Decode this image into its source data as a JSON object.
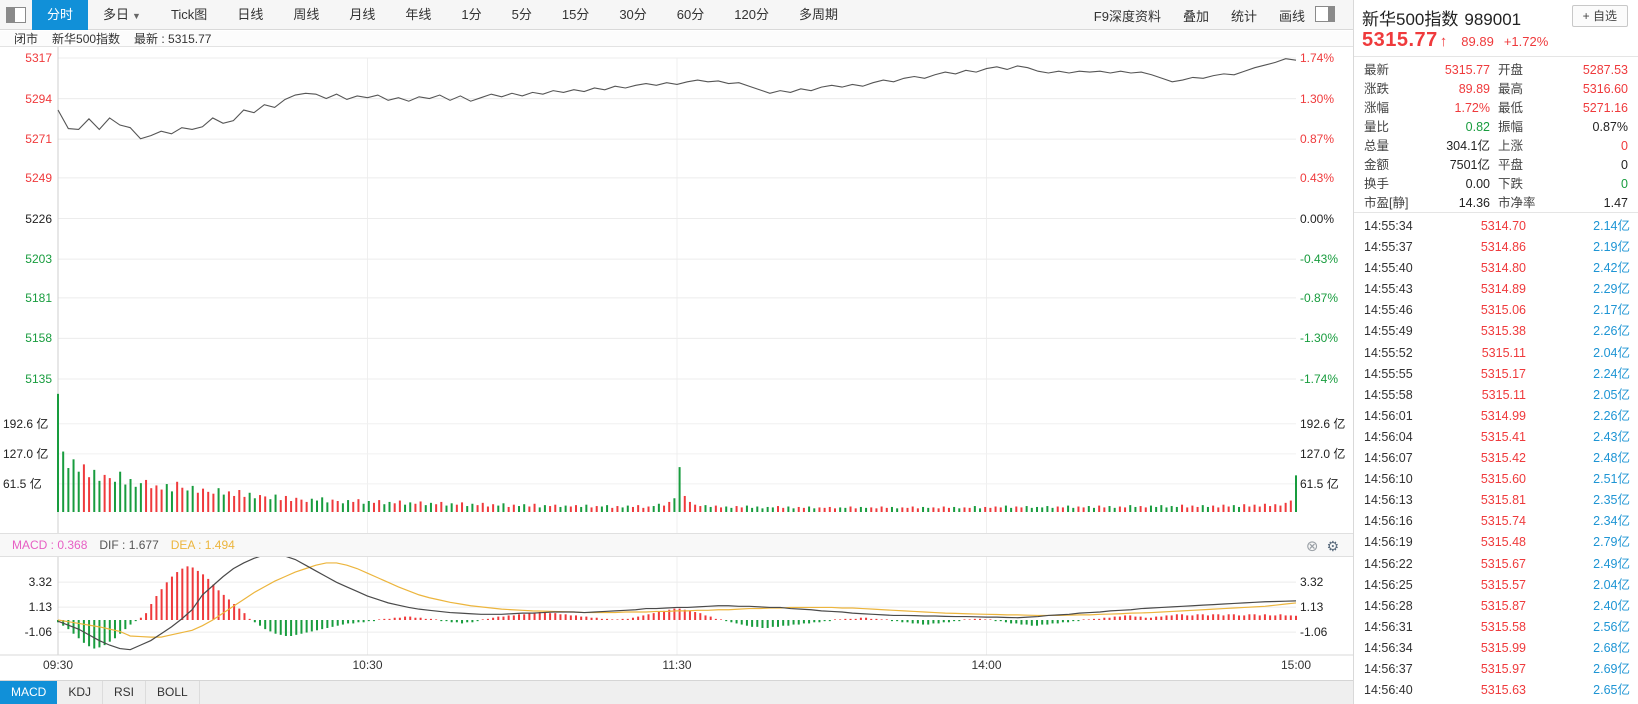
{
  "toolbar": {
    "tabs": [
      {
        "label": "分时",
        "active": true
      },
      {
        "label": "多日",
        "caret": true
      },
      {
        "label": "Tick图"
      },
      {
        "label": "日线"
      },
      {
        "label": "周线"
      },
      {
        "label": "月线"
      },
      {
        "label": "年线"
      },
      {
        "label": "1分"
      },
      {
        "label": "5分"
      },
      {
        "label": "15分"
      },
      {
        "label": "30分"
      },
      {
        "label": "60分"
      },
      {
        "label": "120分"
      },
      {
        "label": "多周期"
      }
    ],
    "right_items": [
      "F9深度资料",
      "叠加",
      "统计",
      "画线"
    ]
  },
  "status_bar": {
    "market_status": "闭市",
    "name": "新华500指数",
    "latest": "最新 : 5315.77"
  },
  "quote_panel": {
    "title": "新华500指数",
    "code": "989001",
    "add_watchlist_label": "+ 自选",
    "price": "5315.77",
    "arrow": "↑",
    "change": "89.89",
    "change_pct": "+1.72%",
    "stats": [
      {
        "l": "最新",
        "v": "5315.77",
        "c": "red",
        "l2": "开盘",
        "v2": "5287.53",
        "c2": "red"
      },
      {
        "l": "涨跌",
        "v": "89.89",
        "c": "red",
        "l2": "最高",
        "v2": "5316.60",
        "c2": "red"
      },
      {
        "l": "涨幅",
        "v": "1.72%",
        "c": "red",
        "l2": "最低",
        "v2": "5271.16",
        "c2": "red"
      },
      {
        "l": "量比",
        "v": "0.82",
        "c": "green",
        "l2": "振幅",
        "v2": "0.87%",
        "c2": "blk"
      },
      {
        "l": "总量",
        "v": "304.1亿",
        "c": "blk",
        "l2": "上涨",
        "v2": "0",
        "c2": "red"
      },
      {
        "l": "金额",
        "v": "7501亿",
        "c": "blk",
        "l2": "平盘",
        "v2": "0",
        "c2": "blk"
      },
      {
        "l": "换手",
        "v": "0.00",
        "c": "blk",
        "l2": "下跌",
        "v2": "0",
        "c2": "green"
      },
      {
        "l": "市盈[静]",
        "v": "14.36",
        "c": "blk",
        "l2": "市净率",
        "v2": "1.47",
        "c2": "blk"
      }
    ],
    "ticks": [
      {
        "time": "14:55:34",
        "price": "5314.70",
        "vol": "2.14亿"
      },
      {
        "time": "14:55:37",
        "price": "5314.86",
        "vol": "2.19亿"
      },
      {
        "time": "14:55:40",
        "price": "5314.80",
        "vol": "2.42亿"
      },
      {
        "time": "14:55:43",
        "price": "5314.89",
        "vol": "2.29亿"
      },
      {
        "time": "14:55:46",
        "price": "5315.06",
        "vol": "2.17亿"
      },
      {
        "time": "14:55:49",
        "price": "5315.38",
        "vol": "2.26亿"
      },
      {
        "time": "14:55:52",
        "price": "5315.11",
        "vol": "2.04亿"
      },
      {
        "time": "14:55:55",
        "price": "5315.17",
        "vol": "2.24亿"
      },
      {
        "time": "14:55:58",
        "price": "5315.11",
        "vol": "2.05亿"
      },
      {
        "time": "14:56:01",
        "price": "5314.99",
        "vol": "2.26亿"
      },
      {
        "time": "14:56:04",
        "price": "5315.41",
        "vol": "2.43亿"
      },
      {
        "time": "14:56:07",
        "price": "5315.42",
        "vol": "2.48亿"
      },
      {
        "time": "14:56:10",
        "price": "5315.60",
        "vol": "2.51亿"
      },
      {
        "time": "14:56:13",
        "price": "5315.81",
        "vol": "2.35亿"
      },
      {
        "time": "14:56:16",
        "price": "5315.74",
        "vol": "2.34亿"
      },
      {
        "time": "14:56:19",
        "price": "5315.48",
        "vol": "2.79亿"
      },
      {
        "time": "14:56:22",
        "price": "5315.67",
        "vol": "2.49亿"
      },
      {
        "time": "14:56:25",
        "price": "5315.57",
        "vol": "2.04亿"
      },
      {
        "time": "14:56:28",
        "price": "5315.87",
        "vol": "2.40亿"
      },
      {
        "time": "14:56:31",
        "price": "5315.58",
        "vol": "2.56亿"
      },
      {
        "time": "14:56:34",
        "price": "5315.99",
        "vol": "2.68亿"
      },
      {
        "time": "14:56:37",
        "price": "5315.97",
        "vol": "2.69亿"
      },
      {
        "time": "14:56:40",
        "price": "5315.63",
        "vol": "2.65亿"
      }
    ]
  },
  "chart": {
    "macd_header": {
      "macd_label": "MACD : 0.368",
      "dif_label": "DIF : 1.677",
      "dea_label": "DEA : 1.494"
    },
    "indicator_tabs": [
      "MACD",
      "KDJ",
      "RSI",
      "BOLL"
    ],
    "active_indicator": "MACD",
    "volume_unit": "亿"
  },
  "colors": {
    "up_red": "#ef3a3c",
    "down_green": "#189c3e",
    "volume_blue": "#1e95d4",
    "accent_blue": "#1190d8",
    "macd_pink": "#e75fc4",
    "dea_orange": "#ecb53d",
    "dif_gray": "#4a4a4a",
    "price_line": "#555555"
  },
  "chart_data": {
    "type": "line",
    "title": "新华500指数 分时走势",
    "prev_close": 5225.88,
    "price_gridlines": [
      5317,
      5294,
      5271,
      5249,
      5226,
      5203,
      5181,
      5158,
      5135
    ],
    "pct_gridlines": [
      "1.74%",
      "1.30%",
      "0.87%",
      "0.43%",
      "0.00%",
      "-0.43%",
      "-0.87%",
      "-1.30%",
      "-1.74%"
    ],
    "price_ylim": [
      5135,
      5317
    ],
    "x_ticks": [
      "09:30",
      "10:30",
      "11:30",
      "14:00",
      "15:00"
    ],
    "price": [
      5287.5,
      5277.0,
      5276.5,
      5282.5,
      5276.5,
      5283.0,
      5279.0,
      5277.5,
      5271.2,
      5273.0,
      5275.5,
      5274.0,
      5277.5,
      5276.5,
      5278.0,
      5283.0,
      5280.0,
      5281.5,
      5287.5,
      5286.0,
      5290.5,
      5289.0,
      5293.5,
      5296.0,
      5297.0,
      5296.5,
      5294.0,
      5296.5,
      5293.5,
      5295.5,
      5294.5,
      5296.0,
      5293.0,
      5294.5,
      5292.5,
      5295.0,
      5294.0,
      5296.0,
      5293.0,
      5295.5,
      5292.5,
      5294.5,
      5296.5,
      5295.0,
      5297.0,
      5295.5,
      5297.5,
      5296.5,
      5298.5,
      5297.5,
      5299.0,
      5298.0,
      5300.0,
      5299.0,
      5301.0,
      5300.0,
      5301.5,
      5302.5,
      5301.5,
      5303.0,
      5302.0,
      5303.5,
      5304.5,
      5303.5,
      5304.0,
      5302.5,
      5303.0,
      5301.0,
      5299.0,
      5297.0,
      5298.5,
      5297.5,
      5299.5,
      5298.5,
      5300.5,
      5301.5,
      5300.5,
      5302.0,
      5301.0,
      5303.0,
      5304.5,
      5303.5,
      5305.5,
      5306.5,
      5305.5,
      5307.5,
      5309.0,
      5308.0,
      5310.0,
      5309.0,
      5311.0,
      5312.0,
      5310.5,
      5312.5,
      5311.5,
      5309.5,
      5308.5,
      5309.5,
      5308.5,
      5309.5,
      5309.0,
      5309.5,
      5308.5,
      5309.5,
      5308.5,
      5309.0,
      5307.5,
      5305.5,
      5303.5,
      5304.5,
      5306.0,
      5305.5,
      5307.0,
      5308.0,
      5307.5,
      5309.5,
      5311.5,
      5313.0,
      5314.5,
      5316.6,
      5315.77
    ],
    "volume_gridlines": [
      61.5,
      127.0,
      192.6
    ],
    "volume_ylim": [
      0,
      262
    ],
    "volume": [
      258,
      132,
      96,
      115,
      88,
      104,
      76,
      92,
      68,
      81,
      74,
      66,
      88,
      60,
      72,
      55,
      63,
      70,
      52,
      58,
      49,
      61,
      45,
      66,
      53,
      47,
      57,
      42,
      51,
      44,
      40,
      52,
      38,
      45,
      35,
      48,
      33,
      42,
      30,
      37,
      34,
      28,
      38,
      26,
      35,
      24,
      31,
      27,
      22,
      29,
      25,
      32,
      21,
      27,
      24,
      19,
      26,
      22,
      28,
      18,
      24,
      20,
      26,
      17,
      22,
      19,
      25,
      16,
      21,
      18,
      23,
      15,
      20,
      17,
      22,
      14,
      19,
      16,
      21,
      13,
      18,
      15,
      20,
      12,
      17,
      14,
      19,
      11,
      16,
      13,
      17,
      12,
      18,
      10,
      15,
      13,
      16,
      11,
      14,
      12,
      15,
      11,
      16,
      10,
      13,
      12,
      15,
      9,
      13,
      10,
      14,
      11,
      15,
      9,
      12,
      13,
      18,
      14,
      22,
      30,
      98,
      35,
      22,
      16,
      13,
      15,
      11,
      14,
      10,
      12,
      9,
      13,
      10,
      14,
      9,
      12,
      8,
      11,
      10,
      13,
      9,
      12,
      8,
      11,
      9,
      12,
      8,
      10,
      9,
      11,
      8,
      10,
      9,
      12,
      8,
      11,
      9,
      10,
      8,
      12,
      9,
      11,
      8,
      10,
      9,
      12,
      8,
      11,
      9,
      10,
      8,
      12,
      9,
      11,
      8,
      10,
      9,
      13,
      8,
      11,
      9,
      12,
      10,
      14,
      9,
      12,
      10,
      13,
      9,
      11,
      10,
      13,
      9,
      12,
      10,
      14,
      9,
      12,
      10,
      13,
      9,
      14,
      10,
      13,
      9,
      12,
      10,
      15,
      11,
      13,
      10,
      14,
      11,
      15,
      10,
      13,
      11,
      16,
      10,
      14,
      11,
      15,
      11,
      14,
      10,
      16,
      12,
      15,
      11,
      17,
      12,
      16,
      12,
      18,
      13,
      17,
      14,
      20,
      25,
      80
    ],
    "macd": {
      "last": {
        "macd": 0.368,
        "dif": 1.677,
        "dea": 1.494
      },
      "gridlines": [
        3.32,
        1.13,
        -1.06
      ],
      "ylim": [
        -3.0,
        5.9
      ],
      "dif": [
        -0.1,
        -0.45,
        -0.8,
        -1.3,
        -1.8,
        -2.2,
        -2.5,
        -2.6,
        -2.2,
        -1.8,
        -1.2,
        -0.6,
        0.1,
        0.9,
        2.2,
        3.0,
        3.8,
        4.5,
        5.0,
        5.4,
        5.7,
        5.8,
        5.6,
        5.3,
        4.8,
        4.3,
        3.8,
        3.3,
        2.9,
        2.5,
        2.1,
        1.8,
        1.5,
        1.3,
        1.1,
        0.95,
        0.85,
        0.75,
        0.65,
        0.6,
        0.55,
        0.5,
        0.5,
        0.5,
        0.55,
        0.6,
        0.6,
        0.65,
        0.7,
        0.7,
        0.7,
        0.65,
        0.7,
        0.75,
        0.8,
        0.85,
        0.9,
        1.0,
        1.0,
        1.05,
        1.1,
        1.1,
        1.15,
        1.2,
        1.25,
        1.25,
        1.2,
        1.2,
        1.15,
        1.1,
        1.1,
        1.0,
        0.95,
        0.9,
        0.8,
        0.75,
        0.7,
        0.6,
        0.55,
        0.5,
        0.45,
        0.4,
        0.4,
        0.38,
        0.35,
        0.35,
        0.32,
        0.3,
        0.3,
        0.28,
        0.25,
        0.25,
        0.22,
        0.2,
        0.25,
        0.3,
        0.4,
        0.45,
        0.5,
        0.6,
        0.65,
        0.7,
        0.8,
        0.85,
        0.9,
        1.0,
        1.05,
        1.1,
        1.15,
        1.2,
        1.25,
        1.3,
        1.35,
        1.4,
        1.45,
        1.5,
        1.55,
        1.6,
        1.62,
        1.65,
        1.677
      ],
      "dea": [
        0.0,
        -0.15,
        -0.3,
        -0.45,
        -0.6,
        -0.8,
        -1.0,
        -1.4,
        -1.45,
        -1.5,
        -1.5,
        -1.3,
        -1.1,
        -0.9,
        -0.5,
        0.0,
        0.6,
        1.2,
        1.8,
        2.4,
        2.9,
        3.4,
        3.8,
        4.2,
        4.5,
        4.8,
        5.0,
        5.0,
        4.8,
        4.5,
        4.1,
        3.7,
        3.3,
        2.9,
        2.55,
        2.2,
        1.95,
        1.75,
        1.55,
        1.4,
        1.25,
        1.15,
        1.05,
        0.95,
        0.9,
        0.85,
        0.8,
        0.78,
        0.75,
        0.72,
        0.7,
        0.65,
        0.65,
        0.65,
        0.65,
        0.7,
        0.7,
        0.7,
        0.75,
        0.75,
        0.8,
        0.8,
        0.85,
        0.85,
        0.9,
        0.9,
        0.95,
        1.0,
        1.0,
        1.05,
        1.05,
        1.1,
        1.1,
        1.1,
        1.1,
        1.1,
        1.05,
        1.05,
        1.0,
        0.95,
        0.9,
        0.85,
        0.8,
        0.75,
        0.7,
        0.65,
        0.6,
        0.58,
        0.55,
        0.52,
        0.5,
        0.48,
        0.45,
        0.45,
        0.42,
        0.4,
        0.4,
        0.4,
        0.42,
        0.45,
        0.45,
        0.5,
        0.52,
        0.55,
        0.6,
        0.62,
        0.65,
        0.7,
        0.75,
        0.8,
        0.85,
        0.9,
        0.95,
        1.0,
        1.05,
        1.1,
        1.15,
        1.2,
        1.3,
        1.4,
        1.494
      ],
      "hist": [
        -0.2,
        -0.5,
        -0.8,
        -1.2,
        -1.6,
        -2.0,
        -2.3,
        -2.5,
        -2.4,
        -2.2,
        -1.9,
        -1.6,
        -1.2,
        -0.8,
        -0.4,
        -0.1,
        0.2,
        0.6,
        1.4,
        2.1,
        2.7,
        3.3,
        3.8,
        4.2,
        4.5,
        4.7,
        4.6,
        4.3,
        4.0,
        3.6,
        3.1,
        2.6,
        2.2,
        1.8,
        1.4,
        1.0,
        0.6,
        0.1,
        -0.2,
        -0.5,
        -0.8,
        -1.0,
        -1.2,
        -1.3,
        -1.4,
        -1.4,
        -1.3,
        -1.2,
        -1.1,
        -1.0,
        -0.9,
        -0.8,
        -0.7,
        -0.6,
        -0.5,
        -0.4,
        -0.3,
        -0.3,
        -0.2,
        -0.2,
        -0.1,
        -0.1,
        0.0,
        0.1,
        0.1,
        0.2,
        0.2,
        0.3,
        0.3,
        0.2,
        0.2,
        0.1,
        0.1,
        0.0,
        -0.1,
        -0.1,
        -0.2,
        -0.2,
        -0.3,
        -0.2,
        -0.2,
        -0.1,
        0.0,
        0.1,
        0.2,
        0.3,
        0.3,
        0.4,
        0.4,
        0.5,
        0.5,
        0.6,
        0.6,
        0.7,
        0.7,
        0.6,
        0.6,
        0.5,
        0.5,
        0.4,
        0.4,
        0.3,
        0.3,
        0.2,
        0.2,
        0.1,
        0.1,
        0.0,
        0.0,
        0.1,
        0.1,
        0.2,
        0.3,
        0.4,
        0.5,
        0.6,
        0.7,
        0.8,
        0.9,
        1.0,
        1.0,
        0.9,
        0.8,
        0.7,
        0.6,
        0.4,
        0.3,
        0.1,
        0.0,
        -0.1,
        -0.2,
        -0.3,
        -0.4,
        -0.5,
        -0.6,
        -0.6,
        -0.7,
        -0.7,
        -0.6,
        -0.6,
        -0.5,
        -0.5,
        -0.4,
        -0.4,
        -0.3,
        -0.3,
        -0.2,
        -0.2,
        -0.1,
        -0.1,
        0.0,
        0.0,
        0.1,
        0.1,
        0.1,
        0.2,
        0.2,
        0.1,
        0.1,
        0.0,
        0.0,
        -0.1,
        -0.1,
        -0.2,
        -0.2,
        -0.3,
        -0.3,
        -0.4,
        -0.4,
        -0.3,
        -0.3,
        -0.2,
        -0.2,
        -0.1,
        -0.1,
        0.0,
        0.0,
        0.1,
        0.1,
        0.0,
        0.0,
        -0.1,
        -0.1,
        -0.2,
        -0.3,
        -0.3,
        -0.4,
        -0.4,
        -0.5,
        -0.5,
        -0.4,
        -0.4,
        -0.3,
        -0.3,
        -0.2,
        -0.2,
        -0.1,
        -0.1,
        0.0,
        0.0,
        0.1,
        0.1,
        0.2,
        0.2,
        0.3,
        0.3,
        0.4,
        0.4,
        0.3,
        0.3,
        0.2,
        0.2,
        0.3,
        0.3,
        0.4,
        0.4,
        0.5,
        0.5,
        0.4,
        0.4,
        0.5,
        0.5,
        0.4,
        0.5,
        0.5,
        0.4,
        0.5,
        0.5,
        0.4,
        0.4,
        0.5,
        0.5,
        0.4,
        0.5,
        0.4,
        0.4,
        0.5,
        0.4,
        0.4,
        0.37
      ]
    }
  }
}
